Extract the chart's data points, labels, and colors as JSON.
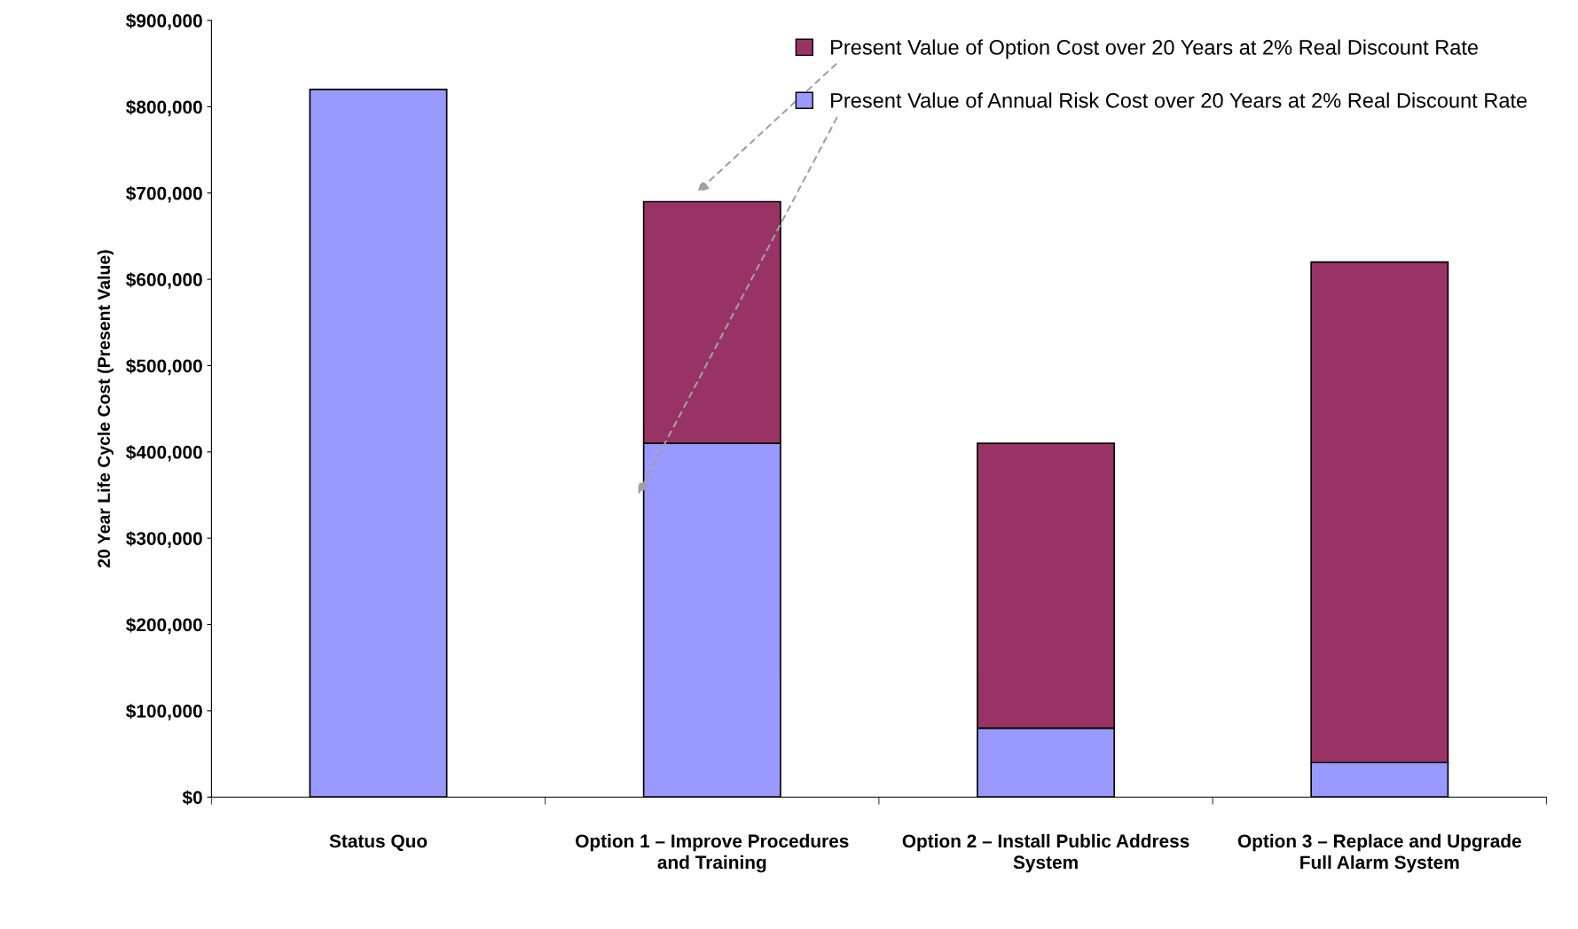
{
  "chart_data": {
    "type": "bar",
    "stacked": true,
    "ylabel": "20 Year Life Cycle Cost (Present Value)",
    "categories": [
      "Status Quo",
      "Option 1 – Improve Procedures and Training",
      "Option 2 – Install Public Address System",
      "Option 3 – Replace and Upgrade Full Alarm System"
    ],
    "series": [
      {
        "name": "Present Value of Annual Risk Cost over 20 Years at 2% Real Discount Rate",
        "color": "#9999ff",
        "values": [
          820000,
          410000,
          80000,
          40000
        ]
      },
      {
        "name": "Present Value of Option Cost over 20 Years at 2% Real Discount Rate",
        "color": "#993366",
        "values": [
          null,
          280000,
          330000,
          580000
        ]
      }
    ],
    "ylim": [
      0,
      900000
    ],
    "yticks": [
      {
        "value": 0,
        "label": "$0"
      },
      {
        "value": 100000,
        "label": "$100,000"
      },
      {
        "value": 200000,
        "label": "$200,000"
      },
      {
        "value": 300000,
        "label": "$300,000"
      },
      {
        "value": 400000,
        "label": "$400,000"
      },
      {
        "value": 500000,
        "label": "$500,000"
      },
      {
        "value": 600000,
        "label": "$600,000"
      },
      {
        "value": 700000,
        "label": "$700,000"
      },
      {
        "value": 800000,
        "label": "$800,000"
      },
      {
        "value": 900000,
        "label": "$900,000"
      }
    ],
    "grid": false,
    "legend": "top right"
  }
}
